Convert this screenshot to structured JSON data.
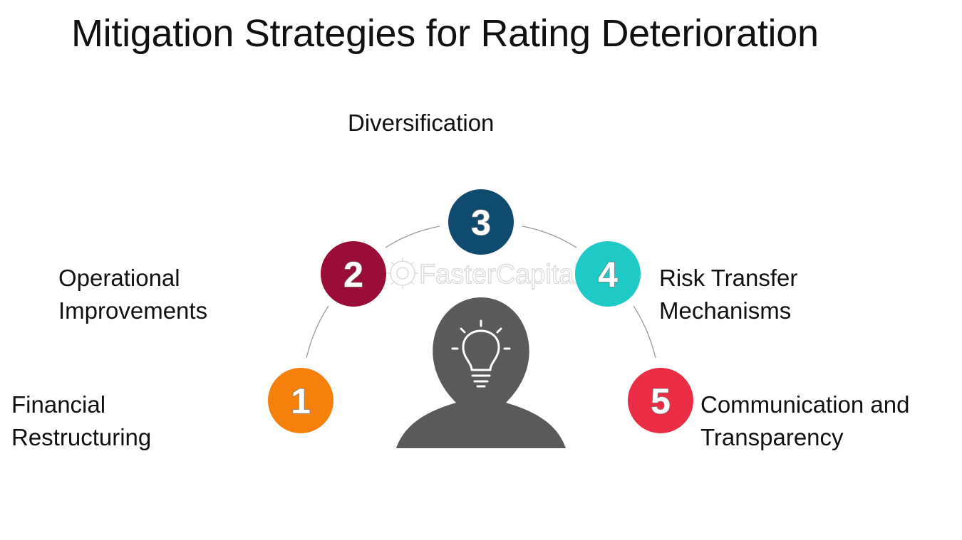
{
  "title": "Mitigation Strategies for Rating Deterioration",
  "steps": [
    {
      "number": "1",
      "label_lines": [
        "Financial",
        "Restructuring"
      ],
      "color": "#f6800c"
    },
    {
      "number": "2",
      "label_lines": [
        "Operational",
        "Improvements"
      ],
      "color": "#9a0d38"
    },
    {
      "number": "3",
      "label_lines": [
        "Diversification"
      ],
      "color": "#0f4b6e"
    },
    {
      "number": "4",
      "label_lines": [
        "Risk Transfer",
        "Mechanisms"
      ],
      "color": "#1ec9c6"
    },
    {
      "number": "5",
      "label_lines": [
        "Communication and",
        "Transparency"
      ],
      "color": "#ea2d45"
    }
  ],
  "center_figure": {
    "icon": "lightbulb-icon",
    "color": "#5a5a5a"
  },
  "watermark": "FasterCapital"
}
